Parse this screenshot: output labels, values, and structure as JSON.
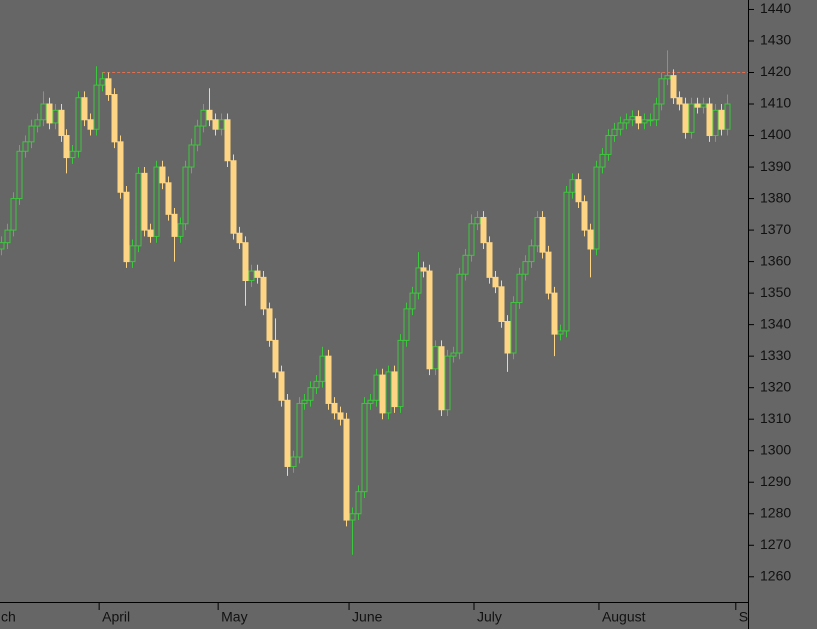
{
  "chart_data": {
    "type": "candlestick",
    "categories": [
      null,
      null,
      null,
      null,
      null,
      null,
      null,
      null,
      null,
      null,
      null,
      null,
      null,
      null,
      null,
      null,
      null,
      null,
      null,
      null,
      null,
      null,
      null,
      null,
      null,
      null,
      null,
      null,
      null,
      null,
      null,
      null,
      null,
      null,
      null,
      null,
      null,
      null,
      null,
      null,
      null,
      null,
      null,
      null,
      null,
      null,
      null,
      null,
      null,
      null,
      null,
      null,
      null,
      null,
      null,
      null,
      null,
      null,
      null,
      null,
      null,
      null,
      null,
      null,
      null,
      null,
      null,
      null,
      null,
      null,
      null,
      null,
      null,
      null,
      null,
      null,
      null,
      null,
      null,
      null,
      null,
      null,
      null,
      null,
      null,
      null,
      null,
      null,
      null,
      null,
      null,
      null,
      null,
      null,
      null,
      null,
      null,
      null,
      null,
      null,
      null,
      null,
      null,
      null,
      null,
      null,
      null,
      null,
      null,
      null,
      null,
      null,
      null,
      null,
      null,
      null,
      null,
      null,
      null,
      null,
      null,
      null,
      null
    ],
    "open": [
      1364,
      1366,
      1370,
      1380,
      1395,
      1398,
      1403,
      1405,
      1410,
      1404,
      1408,
      1400,
      1393,
      1395,
      1412,
      1405,
      1402,
      1416,
      1418,
      1413,
      1398,
      1382,
      1360,
      1365,
      1388,
      1370,
      1368,
      1390,
      1385,
      1375,
      1368,
      1372,
      1390,
      1397,
      1403,
      1408,
      1405,
      1402,
      1405,
      1392,
      1369,
      1366,
      1354,
      1357,
      1355,
      1345,
      1335,
      1325,
      1316,
      1295,
      1298,
      1315,
      1316,
      1320,
      1322,
      1330,
      1315,
      1312,
      1310,
      1278,
      1280,
      1287,
      1315,
      1316,
      1324,
      1312,
      1325,
      1314,
      1335,
      1345,
      1350,
      1358,
      1357,
      1326,
      1333,
      1313,
      1330,
      1331,
      1356,
      1362,
      1372,
      1374,
      1366,
      1355,
      1352,
      1341,
      1331,
      1347,
      1356,
      1360,
      1365,
      1374,
      1363,
      1350,
      1337,
      1338,
      1382,
      1386,
      1379,
      1370,
      1364,
      1390,
      1394,
      1400,
      1402,
      1404,
      1405,
      1406,
      1404,
      1405,
      1405,
      1410,
      1418,
      1419,
      1412,
      1410,
      1401,
      1410,
      1409,
      1410,
      1400,
      1408,
      1402
    ],
    "high": [
      1368,
      1372,
      1382,
      1397,
      1400,
      1405,
      1407,
      1414,
      1412,
      1410,
      1410,
      1402,
      1397,
      1414,
      1414,
      1407,
      1422,
      1420,
      1420,
      1415,
      1400,
      1384,
      1367,
      1390,
      1390,
      1372,
      1392,
      1392,
      1387,
      1377,
      1374,
      1392,
      1399,
      1405,
      1410,
      1415,
      1407,
      1407,
      1407,
      1394,
      1371,
      1368,
      1359,
      1359,
      1357,
      1347,
      1342,
      1327,
      1318,
      1300,
      1317,
      1318,
      1322,
      1324,
      1333,
      1332,
      1317,
      1314,
      1312,
      1282,
      1289,
      1317,
      1318,
      1326,
      1326,
      1327,
      1327,
      1337,
      1347,
      1352,
      1363,
      1360,
      1359,
      1335,
      1335,
      1332,
      1333,
      1358,
      1364,
      1375,
      1376,
      1376,
      1368,
      1357,
      1354,
      1343,
      1349,
      1358,
      1362,
      1367,
      1376,
      1376,
      1365,
      1352,
      1340,
      1384,
      1388,
      1388,
      1381,
      1372,
      1392,
      1396,
      1402,
      1404,
      1406,
      1407,
      1408,
      1408,
      1407,
      1407,
      1412,
      1420,
      1427,
      1421,
      1414,
      1412,
      1412,
      1412,
      1412,
      1412,
      1410,
      1410,
      1413
    ],
    "low": [
      1362,
      1364,
      1368,
      1378,
      1393,
      1396,
      1401,
      1403,
      1402,
      1402,
      1398,
      1388,
      1391,
      1393,
      1403,
      1400,
      1400,
      1414,
      1411,
      1396,
      1380,
      1358,
      1358,
      1363,
      1368,
      1366,
      1366,
      1383,
      1373,
      1360,
      1366,
      1370,
      1388,
      1395,
      1401,
      1403,
      1400,
      1400,
      1390,
      1367,
      1364,
      1346,
      1352,
      1353,
      1343,
      1333,
      1323,
      1314,
      1292,
      1293,
      1296,
      1313,
      1314,
      1318,
      1320,
      1313,
      1310,
      1308,
      1276,
      1267,
      1278,
      1285,
      1313,
      1314,
      1310,
      1310,
      1312,
      1312,
      1333,
      1343,
      1348,
      1355,
      1324,
      1324,
      1311,
      1311,
      1328,
      1329,
      1354,
      1360,
      1370,
      1364,
      1353,
      1350,
      1339,
      1325,
      1329,
      1345,
      1354,
      1358,
      1363,
      1361,
      1348,
      1330,
      1335,
      1336,
      1380,
      1377,
      1368,
      1355,
      1362,
      1388,
      1392,
      1398,
      1400,
      1402,
      1403,
      1402,
      1402,
      1403,
      1403,
      1408,
      1416,
      1410,
      1408,
      1399,
      1399,
      1407,
      1407,
      1398,
      1398,
      1400,
      1400
    ],
    "close": [
      1366,
      1370,
      1380,
      1395,
      1398,
      1403,
      1405,
      1410,
      1404,
      1408,
      1400,
      1393,
      1395,
      1412,
      1405,
      1402,
      1416,
      1418,
      1413,
      1398,
      1382,
      1360,
      1365,
      1388,
      1370,
      1368,
      1390,
      1385,
      1375,
      1368,
      1372,
      1390,
      1397,
      1403,
      1408,
      1405,
      1402,
      1405,
      1392,
      1369,
      1366,
      1354,
      1357,
      1355,
      1345,
      1335,
      1325,
      1316,
      1295,
      1298,
      1315,
      1316,
      1320,
      1322,
      1330,
      1315,
      1312,
      1310,
      1278,
      1280,
      1287,
      1315,
      1316,
      1324,
      1312,
      1325,
      1314,
      1335,
      1345,
      1350,
      1358,
      1357,
      1326,
      1333,
      1313,
      1330,
      1331,
      1356,
      1362,
      1372,
      1374,
      1366,
      1355,
      1352,
      1341,
      1331,
      1347,
      1356,
      1360,
      1365,
      1374,
      1363,
      1350,
      1337,
      1338,
      1382,
      1386,
      1379,
      1370,
      1364,
      1390,
      1394,
      1400,
      1402,
      1404,
      1405,
      1406,
      1404,
      1405,
      1405,
      1410,
      1418,
      1419,
      1412,
      1410,
      1401,
      1410,
      1409,
      1410,
      1400,
      1408,
      1402,
      1410
    ],
    "up_color": "#3cc83c",
    "down_color": "#fdd584",
    "reference_line": {
      "value": 1420,
      "start": 17,
      "color": "#e07050"
    },
    "ylim": [
      1252,
      1443
    ],
    "yticks": [
      1260,
      1270,
      1280,
      1290,
      1300,
      1310,
      1320,
      1330,
      1340,
      1350,
      1360,
      1370,
      1380,
      1390,
      1400,
      1410,
      1420,
      1430,
      1440
    ],
    "xticks": [
      {
        "value": 0,
        "label": "ch"
      },
      {
        "value": 17,
        "label": "April"
      },
      {
        "value": 37,
        "label": "May"
      },
      {
        "value": 59,
        "label": "June"
      },
      {
        "value": 80,
        "label": "July"
      },
      {
        "value": 101,
        "label": "August"
      },
      {
        "value": 124,
        "label": "S"
      }
    ]
  }
}
